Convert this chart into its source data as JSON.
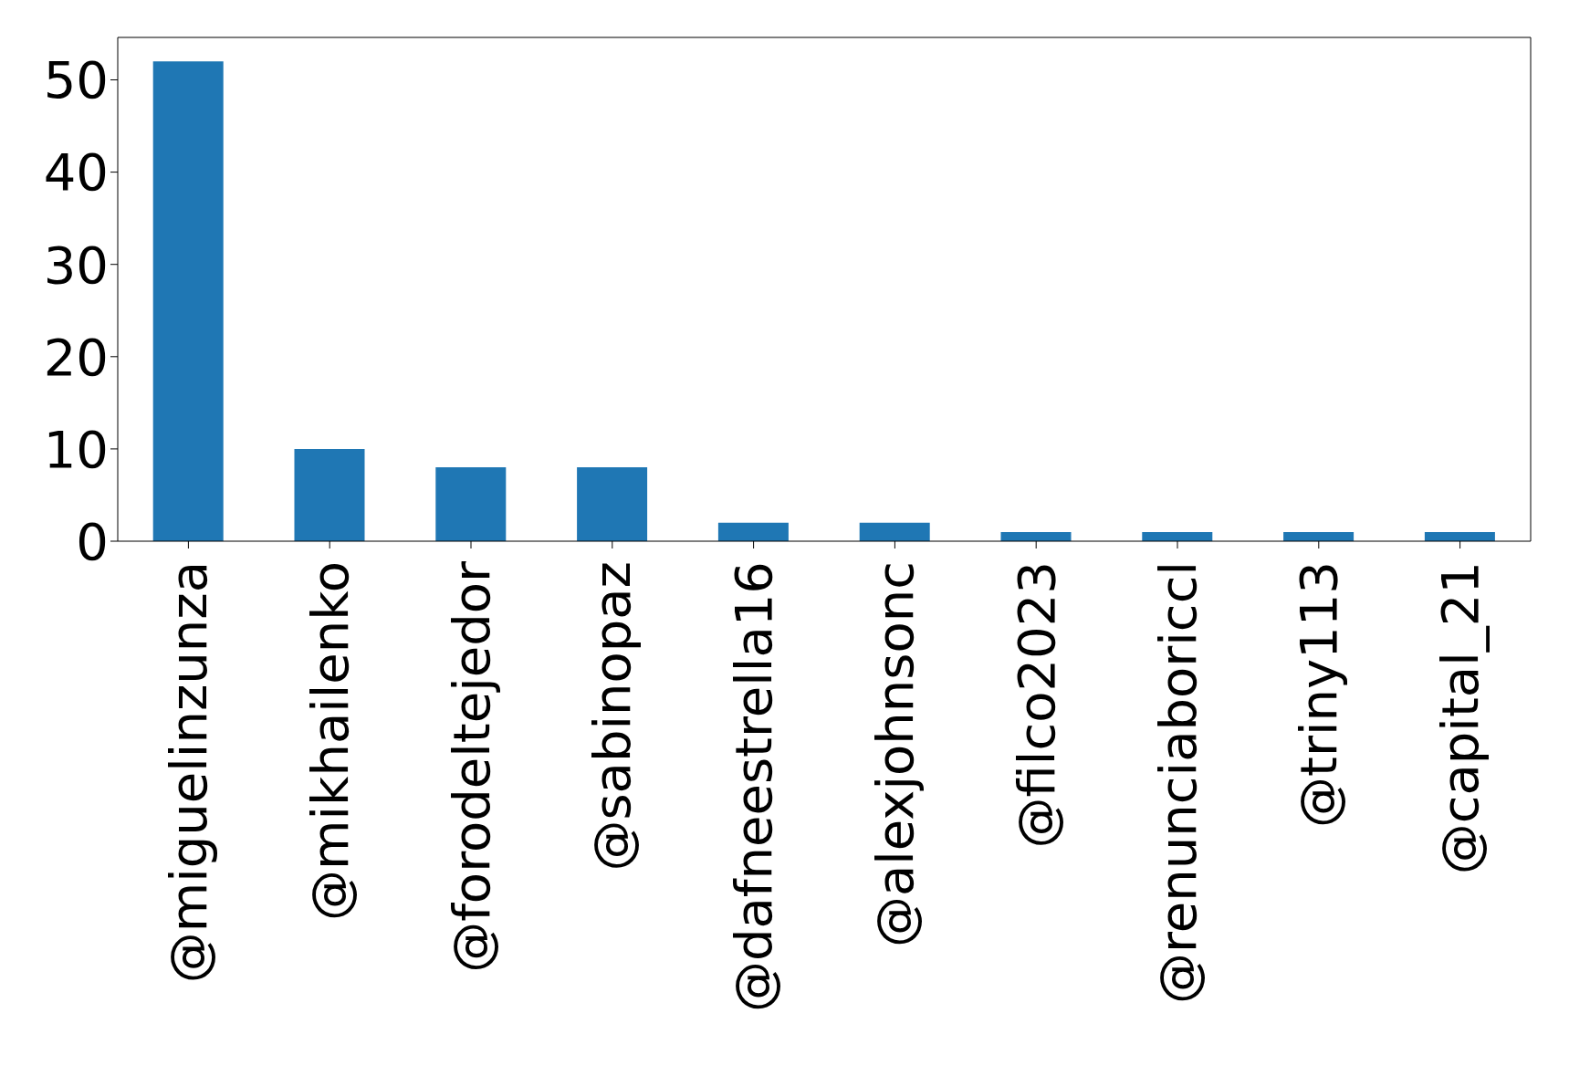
{
  "chart_data": {
    "type": "bar",
    "categories": [
      "@miguelinzunza",
      "@mikhailenko",
      "@forodeltejedor",
      "@sabinopaz",
      "@dafneestrella16",
      "@alexjohnsonc",
      "@filco2023",
      "@renunciaboriccl",
      "@triny113",
      "@capital_21"
    ],
    "values": [
      52,
      10,
      8,
      8,
      2,
      2,
      1,
      1,
      1,
      1
    ],
    "color": "#1f77b4",
    "ylim": [
      0,
      54.6
    ],
    "yticks": [
      0,
      10,
      20,
      30,
      40,
      50
    ],
    "grid": false,
    "legend": false
  }
}
